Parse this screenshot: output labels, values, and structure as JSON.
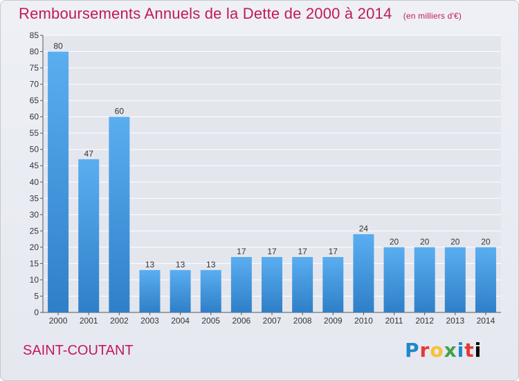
{
  "header": {
    "title": "Remboursements Annuels de la Dette de 2000 à 2014",
    "unit": "(en milliers d'€)"
  },
  "footer": {
    "commune": "SAINT-COUTANT",
    "logo": [
      "P",
      "r",
      "o",
      "x",
      "i",
      "t",
      "i"
    ]
  },
  "colors": {
    "title": "#c2185b",
    "bar_top": "#5aaef0",
    "bar_bottom": "#2f7fc8",
    "grid": "#ffffff"
  },
  "chart_data": {
    "type": "bar",
    "categories": [
      "2000",
      "2001",
      "2002",
      "2003",
      "2004",
      "2005",
      "2006",
      "2007",
      "2008",
      "2009",
      "2010",
      "2011",
      "2012",
      "2013",
      "2014"
    ],
    "values": [
      80,
      47,
      60,
      13,
      13,
      13,
      17,
      17,
      17,
      17,
      24,
      20,
      20,
      20,
      20
    ],
    "ylim": [
      0,
      85
    ],
    "yticks": [
      0,
      5,
      10,
      15,
      20,
      25,
      30,
      35,
      40,
      45,
      50,
      55,
      60,
      65,
      70,
      75,
      80,
      85
    ],
    "grid": true,
    "legend": "none"
  }
}
